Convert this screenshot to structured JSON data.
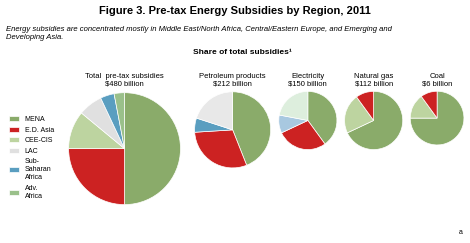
{
  "title": "Figure 3. Pre-tax Energy Subsidies by Region, 2011",
  "subtitle": "Energy subsidies are concentrated mostly in Middle East/North Africa, Central/Eastern Europe, and Emerging and\nDeveloping Asia.",
  "annotations": [
    "Share of total subsidies¹",
    "a"
  ],
  "chart_data": [
    {
      "type": "pie",
      "title": "Total  pre-tax subsidies\n$480 billion",
      "categories": [
        "MENA",
        "E.D. Asia",
        "CEE-CIS",
        "LAC",
        "Sub-\nSaharan\nAfrica",
        "Adv.\nAfrica"
      ],
      "values": [
        50,
        25,
        11,
        7,
        4,
        3
      ],
      "colors": [
        "#8aab6a",
        "#cc2222",
        "#bdd4a0",
        "#e0e0e0",
        "#5a9ec0",
        "#9ac08a"
      ],
      "legend": "center left"
    },
    {
      "type": "pie",
      "title": "Petroleum products\n$212 billion",
      "values": [
        44,
        30,
        6,
        20
      ],
      "colors": [
        "#8aab6a",
        "#cc2222",
        "#5a9ec0",
        "#e8e8e8"
      ]
    },
    {
      "type": "pie",
      "title": "Electricity\n$150 billion",
      "values": [
        40,
        28,
        10,
        22
      ],
      "colors": [
        "#8aab6a",
        "#cc2222",
        "#a8c8e0",
        "#ddeedd"
      ]
    },
    {
      "type": "pie",
      "title": "Natural gas\n$112 billion",
      "values": [
        68,
        22,
        10
      ],
      "colors": [
        "#8aab6a",
        "#bdd4a0",
        "#cc2222"
      ]
    },
    {
      "type": "pie",
      "title": "Coal\n$6 billion",
      "values": [
        75,
        15,
        10
      ],
      "colors": [
        "#8aab6a",
        "#bdd4a0",
        "#cc2222"
      ]
    }
  ]
}
